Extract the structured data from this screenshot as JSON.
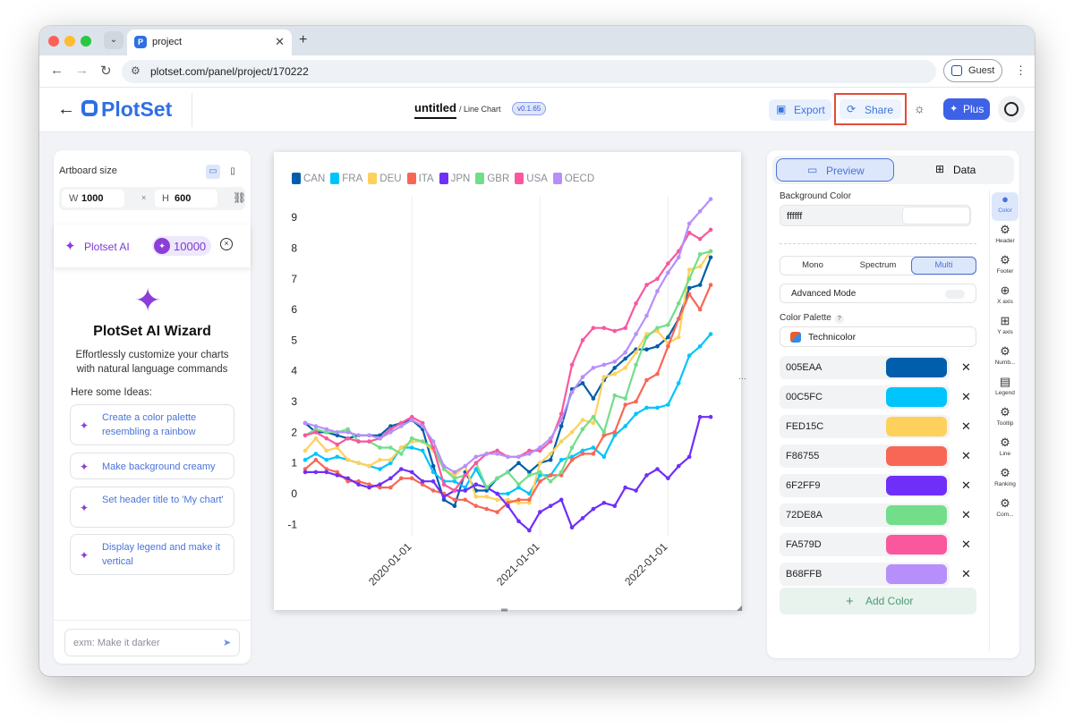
{
  "browser": {
    "tab_title": "project",
    "url": "plotset.com/panel/project/170222",
    "profile_label": "Guest"
  },
  "header": {
    "brand": "PlotSet",
    "doc_title": "untitled",
    "doc_subtitle": "/ Line Chart",
    "version": "v0.1.65",
    "export_label": "Export",
    "share_label": "Share",
    "plus_label": "Plus"
  },
  "left": {
    "artboard_label": "Artboard size",
    "width_key": "W",
    "width_value": "1000",
    "times": "×",
    "height_key": "H",
    "height_value": "600",
    "ai_label": "Plotset AI",
    "credits": "10000",
    "wizard_title": "PlotSet AI Wizard",
    "wizard_desc": "Effortlessly customize your charts with natural language commands",
    "ideas_label": "Here some Ideas:",
    "ideas": [
      "Create a color palette resembling a rainbow",
      "Make background creamy",
      "Set header title to 'My chart'",
      "Display legend and make it vertical"
    ],
    "chat_placeholder": "exm: Make it darker"
  },
  "right": {
    "preview_label": "Preview",
    "data_label": "Data",
    "bg_label": "Background Color",
    "bg_value": "ffffff",
    "modes": [
      "Mono",
      "Spectrum",
      "Multi"
    ],
    "active_mode": "Multi",
    "advanced_label": "Advanced Mode",
    "palette_label": "Color Palette",
    "palette_help": "?",
    "palette_name": "Technicolor",
    "colors": [
      "005EAA",
      "00C5FC",
      "FED15C",
      "F86755",
      "6F2FF9",
      "72DE8A",
      "FA579D",
      "B68FFB"
    ],
    "add_color_label": "Add Color",
    "side_tabs": [
      "Color",
      "Header",
      "Footer",
      "X axis",
      "Y axis",
      "Numb...",
      "Legend",
      "Tooltip",
      "Line",
      "Ranking",
      "Com..."
    ]
  },
  "chart_data": {
    "type": "line",
    "title": "",
    "xlabel": "",
    "ylabel": "",
    "x_ticks": [
      "2020-01-01",
      "2021-01-01",
      "2022-01-01"
    ],
    "y_ticks": [
      -1,
      0,
      1,
      2,
      3,
      4,
      5,
      6,
      7,
      8,
      9
    ],
    "ylim": [
      -1.4,
      9.5
    ],
    "xlim": [
      "2019-03-01",
      "2022-06-01"
    ],
    "grid": "vertical",
    "legend": "top-left",
    "x": [
      "2019-03",
      "2019-04",
      "2019-05",
      "2019-06",
      "2019-07",
      "2019-08",
      "2019-09",
      "2019-10",
      "2019-11",
      "2019-12",
      "2020-01",
      "2020-02",
      "2020-03",
      "2020-04",
      "2020-05",
      "2020-06",
      "2020-07",
      "2020-08",
      "2020-09",
      "2020-10",
      "2020-11",
      "2020-12",
      "2021-01",
      "2021-02",
      "2021-03",
      "2021-04",
      "2021-05",
      "2021-06",
      "2021-07",
      "2021-08",
      "2021-09",
      "2021-10",
      "2021-11",
      "2021-12",
      "2022-01",
      "2022-02",
      "2022-03",
      "2022-04",
      "2022-05"
    ],
    "series": [
      {
        "name": "CAN",
        "color": "#005EAA",
        "values": [
          2.3,
          2.0,
          2.0,
          1.9,
          1.8,
          1.9,
          1.9,
          1.9,
          2.2,
          2.3,
          2.4,
          2.1,
          0.9,
          -0.2,
          -0.4,
          0.7,
          0.1,
          0.1,
          0.5,
          0.7,
          1.0,
          0.7,
          1.0,
          1.1,
          2.2,
          3.4,
          3.6,
          3.1,
          3.7,
          4.1,
          4.4,
          4.7,
          4.7,
          4.8,
          5.1,
          5.7,
          6.7,
          6.8,
          7.7
        ]
      },
      {
        "name": "FRA",
        "color": "#00C5FC",
        "values": [
          1.1,
          1.3,
          1.1,
          1.2,
          1.1,
          1.0,
          0.9,
          0.8,
          1.0,
          1.5,
          1.5,
          1.4,
          0.7,
          0.4,
          0.4,
          0.2,
          0.8,
          0.2,
          0.0,
          0.0,
          0.2,
          0.0,
          0.6,
          0.6,
          1.1,
          1.2,
          1.4,
          1.5,
          1.2,
          1.9,
          2.2,
          2.6,
          2.8,
          2.8,
          2.9,
          3.6,
          4.5,
          4.8,
          5.2
        ]
      },
      {
        "name": "DEU",
        "color": "#FED15C",
        "values": [
          1.4,
          1.8,
          1.4,
          1.5,
          1.1,
          1.0,
          0.9,
          1.1,
          1.1,
          1.5,
          1.7,
          1.7,
          1.4,
          0.8,
          0.6,
          0.9,
          -0.1,
          -0.1,
          -0.2,
          -0.2,
          -0.3,
          -0.3,
          1.0,
          1.3,
          1.7,
          2.0,
          2.4,
          2.3,
          3.8,
          3.9,
          4.1,
          4.6,
          5.2,
          5.3,
          4.9,
          5.1,
          7.3,
          7.4,
          7.9
        ]
      },
      {
        "name": "ITA",
        "color": "#F86755",
        "values": [
          0.8,
          1.1,
          0.8,
          0.7,
          0.4,
          0.4,
          0.3,
          0.2,
          0.2,
          0.5,
          0.5,
          0.3,
          0.1,
          0.0,
          -0.2,
          -0.2,
          -0.4,
          -0.5,
          -0.6,
          -0.3,
          -0.2,
          -0.2,
          0.4,
          0.6,
          0.6,
          1.1,
          1.3,
          1.3,
          1.9,
          2.0,
          2.9,
          3.0,
          3.7,
          3.9,
          4.8,
          5.7,
          6.5,
          6.0,
          6.8
        ]
      },
      {
        "name": "JPN",
        "color": "#6F2FF9",
        "values": [
          0.7,
          0.7,
          0.7,
          0.6,
          0.5,
          0.3,
          0.2,
          0.3,
          0.5,
          0.8,
          0.7,
          0.4,
          0.4,
          -0.1,
          0.1,
          0.1,
          0.3,
          0.2,
          0.0,
          -0.4,
          -0.9,
          -1.2,
          -0.6,
          -0.4,
          -0.2,
          -1.1,
          -0.8,
          -0.5,
          -0.3,
          -0.4,
          0.2,
          0.1,
          0.6,
          0.8,
          0.5,
          0.9,
          1.2,
          2.5,
          2.5
        ]
      },
      {
        "name": "GBR",
        "color": "#72DE8A",
        "values": [
          1.9,
          2.1,
          2.0,
          2.0,
          2.1,
          1.7,
          1.7,
          1.5,
          1.5,
          1.3,
          1.8,
          1.7,
          1.5,
          0.8,
          0.5,
          0.6,
          1.0,
          0.2,
          0.5,
          0.7,
          0.3,
          0.6,
          0.7,
          0.4,
          0.7,
          1.5,
          2.1,
          2.5,
          2.0,
          3.2,
          3.1,
          4.2,
          5.1,
          5.4,
          5.5,
          6.2,
          7.0,
          7.8,
          7.9
        ]
      },
      {
        "name": "USA",
        "color": "#FA579D",
        "values": [
          1.9,
          2.0,
          1.8,
          1.6,
          1.8,
          1.7,
          1.7,
          1.8,
          2.1,
          2.3,
          2.5,
          2.3,
          1.5,
          0.3,
          0.1,
          0.6,
          1.0,
          1.3,
          1.4,
          1.2,
          1.2,
          1.4,
          1.4,
          1.7,
          2.6,
          4.2,
          5.0,
          5.4,
          5.4,
          5.3,
          5.4,
          6.2,
          6.8,
          7.0,
          7.5,
          7.9,
          8.5,
          8.3,
          8.6
        ]
      },
      {
        "name": "OECD",
        "color": "#B68FFB",
        "values": [
          2.3,
          2.2,
          2.1,
          2.0,
          2.0,
          1.9,
          1.9,
          1.8,
          2.0,
          2.2,
          2.4,
          2.2,
          1.7,
          0.9,
          0.7,
          0.9,
          1.2,
          1.3,
          1.3,
          1.2,
          1.2,
          1.3,
          1.5,
          1.8,
          2.4,
          3.3,
          3.8,
          4.1,
          4.2,
          4.3,
          4.6,
          5.2,
          5.8,
          6.6,
          7.2,
          7.7,
          8.8,
          9.2,
          9.6
        ]
      }
    ]
  }
}
